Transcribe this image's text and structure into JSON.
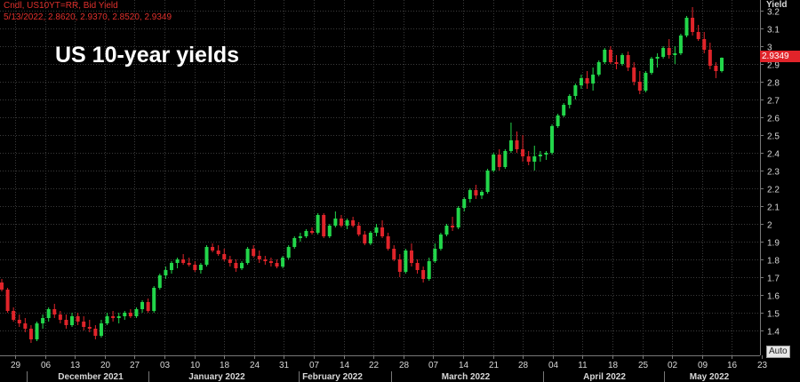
{
  "header": {
    "line1": "Cndl, US10YT=RR, Bid Yield",
    "line2": "5/13/2022, 2.8620, 2.9370, 2.8520, 2.9349"
  },
  "chart_data": {
    "type": "candlestick",
    "title": "US 10-year yields",
    "ylabel": "Yield",
    "ylim": [
      1.25,
      3.25
    ],
    "yticks": [
      "3.2",
      "3.1",
      "3",
      "2.9",
      "2.8",
      "2.7",
      "2.6",
      "2.5",
      "2.4",
      "2.3",
      "2.2",
      "2.1",
      "2",
      "1.9",
      "1.8",
      "1.7",
      "1.6",
      "1.5",
      "1.4"
    ],
    "xticks": [
      "29",
      "06",
      "13",
      "20",
      "27",
      "03",
      "10",
      "18",
      "24",
      "31",
      "07",
      "14",
      "22",
      "28",
      "07",
      "14",
      "21",
      "28",
      "04",
      "11",
      "18",
      "25",
      "02",
      "09",
      "16",
      "23"
    ],
    "months": [
      "December 2021",
      "January 2022",
      "February 2022",
      "March 2022",
      "April 2022",
      "May 2022"
    ],
    "last_value": "2.9349",
    "auto_label": "Auto",
    "colors": {
      "up": "#22d64a",
      "down": "#e0242a",
      "grid": "#3b3b3b",
      "background": "#000000"
    },
    "candles": [
      [
        1.67,
        1.69,
        1.62,
        1.63
      ],
      [
        1.63,
        1.64,
        1.5,
        1.51
      ],
      [
        1.51,
        1.53,
        1.45,
        1.46
      ],
      [
        1.46,
        1.49,
        1.42,
        1.44
      ],
      [
        1.44,
        1.47,
        1.39,
        1.41
      ],
      [
        1.41,
        1.43,
        1.33,
        1.35
      ],
      [
        1.35,
        1.45,
        1.34,
        1.44
      ],
      [
        1.44,
        1.49,
        1.41,
        1.47
      ],
      [
        1.47,
        1.53,
        1.45,
        1.52
      ],
      [
        1.52,
        1.55,
        1.47,
        1.49
      ],
      [
        1.49,
        1.51,
        1.44,
        1.46
      ],
      [
        1.46,
        1.49,
        1.41,
        1.43
      ],
      [
        1.43,
        1.5,
        1.42,
        1.48
      ],
      [
        1.48,
        1.5,
        1.43,
        1.45
      ],
      [
        1.45,
        1.48,
        1.4,
        1.42
      ],
      [
        1.42,
        1.46,
        1.39,
        1.41
      ],
      [
        1.41,
        1.43,
        1.35,
        1.37
      ],
      [
        1.37,
        1.46,
        1.36,
        1.44
      ],
      [
        1.44,
        1.5,
        1.43,
        1.48
      ],
      [
        1.48,
        1.51,
        1.45,
        1.47
      ],
      [
        1.47,
        1.5,
        1.44,
        1.48
      ],
      [
        1.48,
        1.51,
        1.46,
        1.5
      ],
      [
        1.5,
        1.52,
        1.47,
        1.48
      ],
      [
        1.48,
        1.53,
        1.47,
        1.52
      ],
      [
        1.52,
        1.57,
        1.5,
        1.56
      ],
      [
        1.56,
        1.58,
        1.5,
        1.51
      ],
      [
        1.51,
        1.65,
        1.5,
        1.64
      ],
      [
        1.64,
        1.72,
        1.63,
        1.71
      ],
      [
        1.71,
        1.76,
        1.69,
        1.74
      ],
      [
        1.74,
        1.79,
        1.72,
        1.78
      ],
      [
        1.78,
        1.81,
        1.75,
        1.8
      ],
      [
        1.8,
        1.83,
        1.77,
        1.78
      ],
      [
        1.78,
        1.81,
        1.76,
        1.77
      ],
      [
        1.77,
        1.79,
        1.73,
        1.74
      ],
      [
        1.74,
        1.78,
        1.72,
        1.77
      ],
      [
        1.77,
        1.88,
        1.76,
        1.87
      ],
      [
        1.87,
        1.89,
        1.84,
        1.85
      ],
      [
        1.85,
        1.88,
        1.82,
        1.83
      ],
      [
        1.83,
        1.86,
        1.79,
        1.8
      ],
      [
        1.8,
        1.82,
        1.76,
        1.78
      ],
      [
        1.78,
        1.8,
        1.73,
        1.75
      ],
      [
        1.75,
        1.79,
        1.74,
        1.78
      ],
      [
        1.78,
        1.87,
        1.77,
        1.86
      ],
      [
        1.86,
        1.88,
        1.81,
        1.82
      ],
      [
        1.82,
        1.85,
        1.78,
        1.8
      ],
      [
        1.8,
        1.82,
        1.77,
        1.79
      ],
      [
        1.79,
        1.81,
        1.76,
        1.78
      ],
      [
        1.78,
        1.8,
        1.75,
        1.76
      ],
      [
        1.76,
        1.82,
        1.75,
        1.81
      ],
      [
        1.81,
        1.88,
        1.8,
        1.87
      ],
      [
        1.87,
        1.93,
        1.86,
        1.92
      ],
      [
        1.92,
        1.95,
        1.9,
        1.93
      ],
      [
        1.93,
        1.97,
        1.92,
        1.96
      ],
      [
        1.96,
        1.98,
        1.94,
        1.95
      ],
      [
        1.95,
        2.06,
        1.94,
        2.05
      ],
      [
        2.05,
        2.06,
        1.92,
        1.93
      ],
      [
        1.93,
        2.0,
        1.92,
        1.99
      ],
      [
        1.99,
        2.07,
        1.98,
        2.03
      ],
      [
        2.03,
        2.05,
        1.98,
        1.99
      ],
      [
        1.99,
        2.03,
        1.97,
        2.02
      ],
      [
        2.02,
        2.04,
        1.98,
        1.99
      ],
      [
        1.99,
        2.01,
        1.93,
        1.94
      ],
      [
        1.94,
        1.96,
        1.88,
        1.89
      ],
      [
        1.89,
        1.96,
        1.88,
        1.95
      ],
      [
        1.95,
        2.0,
        1.93,
        1.98
      ],
      [
        1.98,
        2.02,
        1.92,
        1.93
      ],
      [
        1.93,
        1.95,
        1.85,
        1.86
      ],
      [
        1.86,
        1.88,
        1.79,
        1.8
      ],
      [
        1.8,
        1.83,
        1.7,
        1.73
      ],
      [
        1.73,
        1.86,
        1.72,
        1.85
      ],
      [
        1.85,
        1.89,
        1.76,
        1.78
      ],
      [
        1.78,
        1.8,
        1.72,
        1.74
      ],
      [
        1.74,
        1.76,
        1.67,
        1.69
      ],
      [
        1.69,
        1.81,
        1.68,
        1.79
      ],
      [
        1.79,
        1.89,
        1.78,
        1.86
      ],
      [
        1.86,
        1.95,
        1.85,
        1.94
      ],
      [
        1.94,
        2.0,
        1.93,
        1.99
      ],
      [
        1.99,
        2.04,
        1.96,
        1.98
      ],
      [
        1.98,
        2.1,
        1.97,
        2.09
      ],
      [
        2.09,
        2.15,
        2.07,
        2.14
      ],
      [
        2.14,
        2.2,
        2.12,
        2.19
      ],
      [
        2.19,
        2.22,
        2.14,
        2.16
      ],
      [
        2.16,
        2.19,
        2.14,
        2.18
      ],
      [
        2.18,
        2.31,
        2.17,
        2.3
      ],
      [
        2.3,
        2.4,
        2.29,
        2.39
      ],
      [
        2.39,
        2.42,
        2.3,
        2.32
      ],
      [
        2.32,
        2.42,
        2.31,
        2.41
      ],
      [
        2.41,
        2.57,
        2.4,
        2.47
      ],
      [
        2.47,
        2.52,
        2.4,
        2.42
      ],
      [
        2.42,
        2.5,
        2.35,
        2.38
      ],
      [
        2.38,
        2.41,
        2.33,
        2.35
      ],
      [
        2.35,
        2.44,
        2.3,
        2.38
      ],
      [
        2.38,
        2.41,
        2.35,
        2.39
      ],
      [
        2.39,
        2.41,
        2.36,
        2.4
      ],
      [
        2.4,
        2.56,
        2.39,
        2.55
      ],
      [
        2.55,
        2.62,
        2.54,
        2.61
      ],
      [
        2.61,
        2.68,
        2.6,
        2.67
      ],
      [
        2.67,
        2.73,
        2.65,
        2.72
      ],
      [
        2.72,
        2.79,
        2.7,
        2.78
      ],
      [
        2.78,
        2.84,
        2.76,
        2.82
      ],
      [
        2.82,
        2.86,
        2.76,
        2.79
      ],
      [
        2.79,
        2.88,
        2.75,
        2.84
      ],
      [
        2.84,
        2.92,
        2.83,
        2.91
      ],
      [
        2.91,
        2.99,
        2.9,
        2.98
      ],
      [
        2.98,
        3.0,
        2.9,
        2.91
      ],
      [
        2.91,
        2.95,
        2.87,
        2.9
      ],
      [
        2.9,
        2.96,
        2.89,
        2.95
      ],
      [
        2.95,
        2.97,
        2.86,
        2.88
      ],
      [
        2.88,
        2.91,
        2.78,
        2.8
      ],
      [
        2.8,
        2.86,
        2.73,
        2.75
      ],
      [
        2.75,
        2.86,
        2.74,
        2.85
      ],
      [
        2.85,
        2.94,
        2.84,
        2.93
      ],
      [
        2.93,
        2.96,
        2.88,
        2.94
      ],
      [
        2.94,
        3.0,
        2.93,
        2.99
      ],
      [
        2.99,
        3.04,
        2.93,
        2.95
      ],
      [
        2.95,
        3.0,
        2.9,
        2.96
      ],
      [
        2.96,
        3.07,
        2.95,
        3.06
      ],
      [
        3.06,
        3.17,
        3.05,
        3.16
      ],
      [
        3.16,
        3.22,
        3.06,
        3.08
      ],
      [
        3.08,
        3.12,
        3.03,
        3.04
      ],
      [
        3.04,
        3.08,
        2.96,
        2.98
      ],
      [
        2.98,
        3.02,
        2.87,
        2.89
      ],
      [
        2.89,
        2.91,
        2.82,
        2.86
      ],
      [
        2.86,
        2.937,
        2.852,
        2.9349
      ]
    ]
  }
}
